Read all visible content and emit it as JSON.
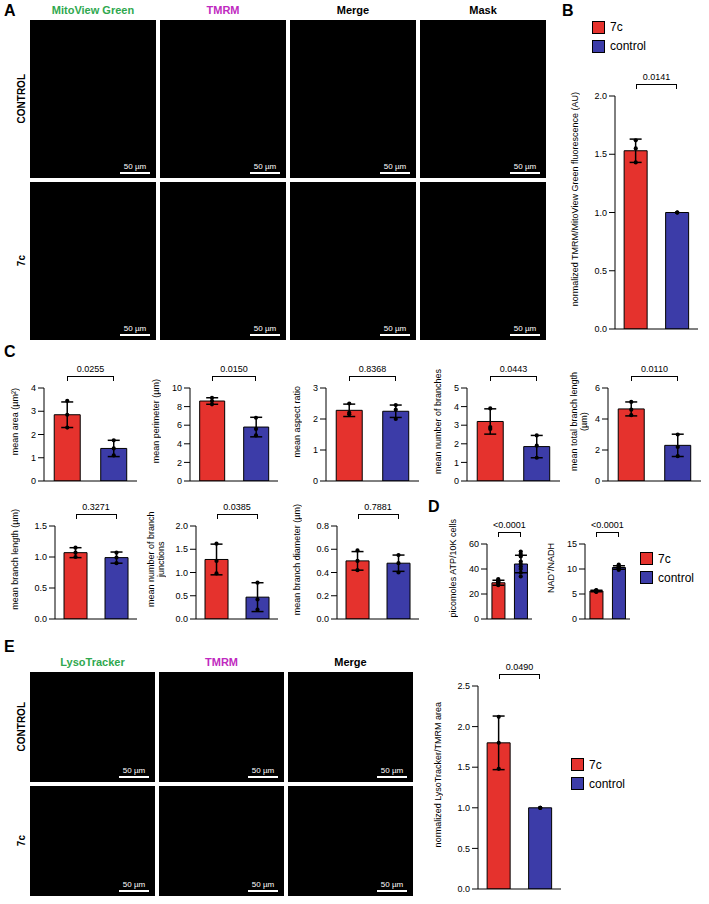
{
  "panel_letters": [
    "A",
    "B",
    "C",
    "D",
    "E"
  ],
  "images": [
    {
      "panel": "A",
      "columns": [
        "MitoView Green",
        "TMRM",
        "Merge",
        "Mask"
      ],
      "colors": [
        "#2fa84f",
        "#c02ac0",
        "#000000",
        "#000000"
      ],
      "rows": [
        "CONTROL",
        "7c"
      ],
      "scale_bar": "50 µm"
    },
    {
      "panel": "E",
      "columns": [
        "LysoTracker",
        "TMRM",
        "Merge"
      ],
      "colors": [
        "#2fa84f",
        "#c02ac0",
        "#000000"
      ],
      "rows": [
        "CONTROL",
        "7c"
      ],
      "scale_bar": "50 µm"
    }
  ],
  "chart_data": [
    {
      "type": "bar",
      "y_label": "normalized TMRM/MitoView Green fluorescence (AU)",
      "categories": [
        "7c",
        "control"
      ],
      "colors": [
        "#e5322d",
        "#3c3ca8"
      ],
      "values": [
        1.53,
        1.0
      ],
      "errors": [
        0.1,
        0
      ],
      "points": [
        [
          1.43,
          1.55,
          1.62
        ],
        [
          1,
          1,
          1
        ]
      ],
      "ylim": [
        0,
        2
      ],
      "yticks": [
        {
          "value": 0,
          "label": "0.0"
        },
        0.5,
        {
          "value": 1,
          "label": "1.0"
        },
        1.5,
        {
          "value": 2,
          "label": "2.0"
        }
      ],
      "annotation": "0.0141",
      "tick_labels": "y",
      "legend": "top"
    },
    {
      "type": "bar",
      "y_label": "mean area (µm²)",
      "categories": [
        "7c",
        "control"
      ],
      "colors": [
        "#e5322d",
        "#3c3ca8"
      ],
      "values": [
        2.85,
        1.4
      ],
      "errors": [
        0.55,
        0.35
      ],
      "points": [
        [
          3.45,
          2.85,
          2.3
        ],
        [
          1.75,
          1.4,
          1.1
        ]
      ],
      "ylim": [
        0,
        4
      ],
      "yticks": [
        0,
        1,
        2,
        3,
        4
      ],
      "annotation": "0.0255",
      "tick_labels": "y"
    },
    {
      "type": "bar",
      "y_label": "mean perimeter (µm)",
      "categories": [
        "7c",
        "control"
      ],
      "colors": [
        "#e5322d",
        "#3c3ca8"
      ],
      "values": [
        8.6,
        5.8
      ],
      "errors": [
        0.35,
        1.05
      ],
      "points": [
        [
          8.95,
          8.6,
          8.25
        ],
        [
          6.8,
          5.6,
          4.9
        ]
      ],
      "ylim": [
        0,
        10
      ],
      "yticks": [
        0,
        2,
        4,
        6,
        8,
        10
      ],
      "annotation": "0.0150",
      "tick_labels": "y"
    },
    {
      "type": "bar",
      "y_label": "mean aspect ratio",
      "categories": [
        "7c",
        "control"
      ],
      "colors": [
        "#e5322d",
        "#3c3ca8"
      ],
      "values": [
        2.28,
        2.25
      ],
      "errors": [
        0.2,
        0.2
      ],
      "points": [
        [
          2.5,
          2.2,
          2.15
        ],
        [
          2.45,
          2.3,
          2.0
        ]
      ],
      "ylim": [
        0,
        3
      ],
      "yticks": [
        0,
        1,
        2,
        3
      ],
      "annotation": "0.8368",
      "tick_labels": "y"
    },
    {
      "type": "bar",
      "y_label": "mean number of branches",
      "categories": [
        "7c",
        "control"
      ],
      "colors": [
        "#e5322d",
        "#3c3ca8"
      ],
      "values": [
        3.2,
        1.85
      ],
      "errors": [
        0.68,
        0.6
      ],
      "points": [
        [
          3.9,
          2.9,
          2.8
        ],
        [
          2.45,
          1.9,
          1.25
        ]
      ],
      "ylim": [
        0,
        5
      ],
      "yticks": [
        0,
        1,
        2,
        3,
        4,
        5
      ],
      "annotation": "0.0443",
      "tick_labels": "y"
    },
    {
      "type": "bar",
      "y_label": "mean total branch length (µm)",
      "categories": [
        "7c",
        "control"
      ],
      "colors": [
        "#e5322d",
        "#3c3ca8"
      ],
      "values": [
        4.65,
        2.3
      ],
      "errors": [
        0.45,
        0.72
      ],
      "points": [
        [
          5.1,
          4.6,
          4.25
        ],
        [
          3.0,
          2.2,
          1.6
        ]
      ],
      "ylim": [
        0,
        6
      ],
      "yticks": [
        0,
        2,
        4,
        6
      ],
      "annotation": "0.0110",
      "tick_labels": "y"
    },
    {
      "type": "bar",
      "y_label": "mean branch length (µm)",
      "categories": [
        "7c",
        "control"
      ],
      "colors": [
        "#e5322d",
        "#3c3ca8"
      ],
      "values": [
        1.07,
        0.99
      ],
      "errors": [
        0.08,
        0.09
      ],
      "points": [
        [
          1.15,
          1.07,
          1.0
        ],
        [
          1.07,
          0.99,
          0.9
        ]
      ],
      "ylim": [
        0,
        1.5
      ],
      "yticks": [
        {
          "value": 0,
          "label": "0.0"
        },
        0.5,
        {
          "value": 1,
          "label": "1.0"
        },
        1.5
      ],
      "annotation": "0.3271",
      "tick_labels": "y"
    },
    {
      "type": "bar",
      "y_label": "mean number of branch junctions",
      "categories": [
        "7c",
        "control"
      ],
      "colors": [
        "#e5322d",
        "#3c3ca8"
      ],
      "values": [
        1.28,
        0.47
      ],
      "errors": [
        0.33,
        0.31
      ],
      "points": [
        [
          1.62,
          1.25,
          0.98
        ],
        [
          0.78,
          0.42,
          0.2
        ]
      ],
      "ylim": [
        0,
        2
      ],
      "yticks": [
        {
          "value": 0,
          "label": "0.0"
        },
        0.5,
        {
          "value": 1,
          "label": "1.0"
        },
        1.5,
        {
          "value": 2,
          "label": "2.0"
        }
      ],
      "annotation": "0.0385",
      "tick_labels": "y"
    },
    {
      "type": "bar",
      "y_label": "mean branch diameter (µm)",
      "categories": [
        "7c",
        "control"
      ],
      "colors": [
        "#e5322d",
        "#3c3ca8"
      ],
      "values": [
        0.5,
        0.48
      ],
      "errors": [
        0.08,
        0.07
      ],
      "points": [
        [
          0.59,
          0.5,
          0.42
        ],
        [
          0.55,
          0.48,
          0.4
        ]
      ],
      "ylim": [
        0,
        0.8
      ],
      "yticks": [
        {
          "value": 0,
          "label": "0.0"
        },
        0.2,
        0.4,
        0.6,
        0.8
      ],
      "annotation": "0.7881",
      "tick_labels": "y"
    },
    {
      "type": "bar",
      "y_label": "picomoles ATP/10K cells",
      "categories": [
        "7c",
        "control"
      ],
      "colors": [
        "#e5322d",
        "#3c3ca8"
      ],
      "values": [
        29,
        44
      ],
      "errors": [
        2,
        7
      ],
      "points": [
        [
          27,
          28,
          29,
          29,
          30,
          30,
          31,
          31,
          32
        ],
        [
          34,
          37,
          40,
          42,
          44,
          46,
          50,
          52,
          54
        ]
      ],
      "ylim": [
        0,
        60
      ],
      "yticks": [
        0,
        20,
        40,
        60
      ],
      "annotation": "<0.0001",
      "tick_labels": "y"
    },
    {
      "type": "bar",
      "y_label": "NAD⁺/NADH",
      "categories": [
        "7c",
        "control"
      ],
      "colors": [
        "#e5322d",
        "#3c3ca8"
      ],
      "values": [
        5.6,
        10.3
      ],
      "errors": [
        0.15,
        0.35
      ],
      "points": [
        [
          5.4,
          5.5,
          5.5,
          5.6,
          5.6,
          5.6,
          5.7,
          5.7,
          5.8
        ],
        [
          9.8,
          10.0,
          10.1,
          10.2,
          10.3,
          10.3,
          10.4,
          10.5,
          10.9
        ]
      ],
      "ylim": [
        0,
        15
      ],
      "yticks": [
        0,
        5,
        10,
        15
      ],
      "annotation": "<0.0001",
      "tick_labels": "y",
      "legend": "right"
    },
    {
      "type": "bar",
      "y_label": "normalized LysoTracker/TMRM area",
      "categories": [
        "7c",
        "control"
      ],
      "colors": [
        "#e5322d",
        "#3c3ca8"
      ],
      "values": [
        1.8,
        1.0
      ],
      "errors": [
        0.33,
        0
      ],
      "points": [
        [
          2.12,
          1.8,
          1.48
        ],
        [
          1,
          1,
          1
        ]
      ],
      "ylim": [
        0,
        2.5
      ],
      "yticks": [
        {
          "value": 0,
          "label": "0.0"
        },
        0.5,
        {
          "value": 1,
          "label": "1.0"
        },
        1.5,
        {
          "value": 2,
          "label": "2.0"
        },
        2.5
      ],
      "annotation": "0.0490",
      "tick_labels": "y",
      "legend": "right"
    }
  ]
}
